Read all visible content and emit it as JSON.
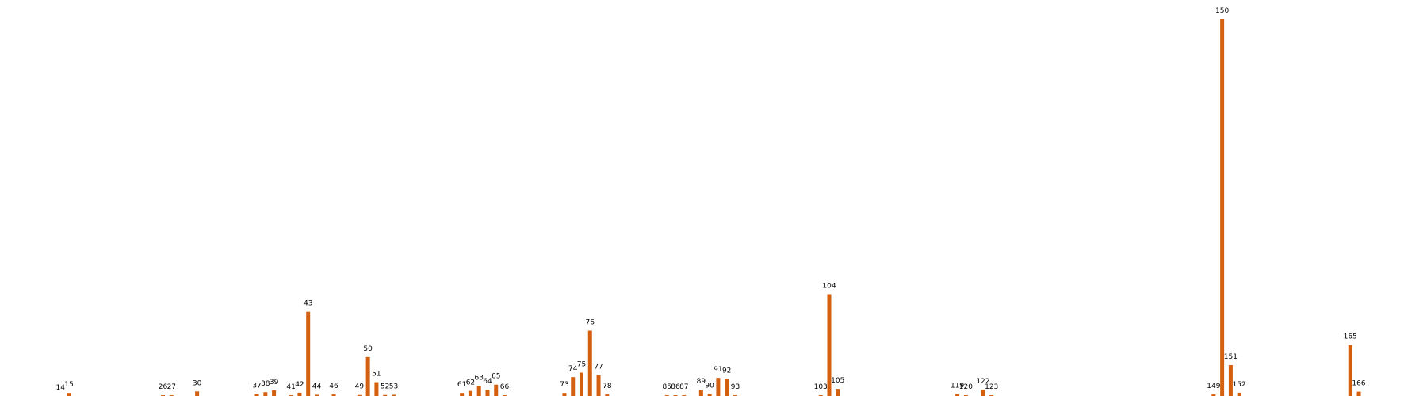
{
  "colors": {
    "bar": "#d45f0e",
    "background": "#ffffff",
    "label": "#000000"
  },
  "chart_data": {
    "type": "bar",
    "title": "",
    "xlabel": "",
    "ylabel": "",
    "ylim": [
      0,
      150
    ],
    "grid": false,
    "axes_visible": false,
    "x_range": [
      7,
      175
    ],
    "categories": [
      "14",
      "15",
      "26",
      "27",
      "30",
      "37",
      "38",
      "39",
      "41",
      "42",
      "43",
      "44",
      "46",
      "49",
      "50",
      "51",
      "52",
      "53",
      "61",
      "62",
      "63",
      "64",
      "65",
      "66",
      "73",
      "74",
      "75",
      "76",
      "77",
      "78",
      "85",
      "86",
      "87",
      "89",
      "90",
      "91",
      "92",
      "93",
      "103",
      "104",
      "105",
      "119",
      "120",
      "122",
      "123",
      "149",
      "150",
      "151",
      "152",
      "165",
      "166"
    ],
    "values": [
      0,
      1.2,
      0.3,
      0.3,
      1.8,
      0.8,
      1.5,
      2.2,
      0.3,
      1.3,
      33.5,
      0.5,
      0.6,
      0.4,
      15.5,
      5.5,
      0.4,
      0.5,
      1.2,
      2.0,
      4.0,
      2.5,
      4.5,
      0.3,
      1.2,
      7.5,
      9.3,
      26.0,
      8.3,
      0.6,
      0.3,
      0.3,
      0.3,
      2.5,
      0.8,
      7.2,
      6.8,
      0.3,
      0.3,
      40.5,
      2.8,
      0.8,
      0.3,
      2.5,
      0.3,
      0.6,
      150,
      12.3,
      1.3,
      20.3,
      1.7
    ]
  }
}
